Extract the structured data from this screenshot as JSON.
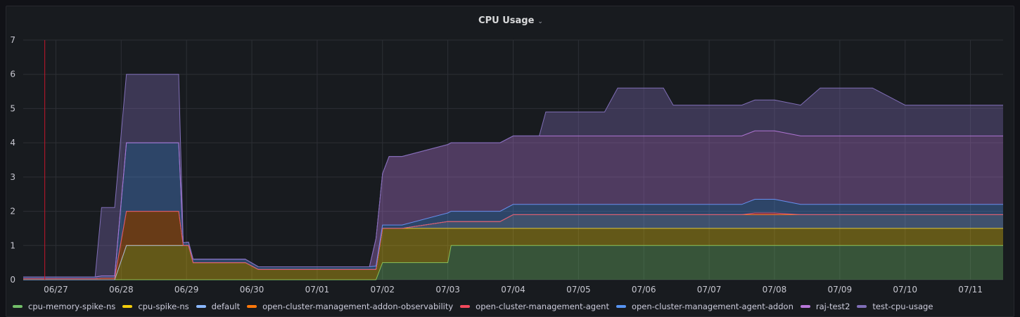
{
  "panel": {
    "title": "CPU Usage",
    "menu_icon": "chevron-down-icon"
  },
  "chart_data": {
    "type": "area",
    "stacked": true,
    "title": "CPU Usage",
    "xlabel": "",
    "ylabel": "",
    "ylim": [
      0,
      7
    ],
    "yticks": [
      0,
      1,
      2,
      3,
      4,
      5,
      6,
      7
    ],
    "x_tick_labels": [
      "06/27",
      "06/28",
      "06/29",
      "06/30",
      "07/01",
      "07/02",
      "07/03",
      "07/04",
      "07/05",
      "07/06",
      "07/07",
      "07/08",
      "07/09",
      "07/10",
      "07/11"
    ],
    "x_range_days": [
      -0.5,
      14.5
    ],
    "annotation_marker_day": -0.17,
    "grid": true,
    "legend_position": "bottom",
    "x": [
      -0.5,
      -0.17,
      0.6,
      0.7,
      0.9,
      1.08,
      1.88,
      1.95,
      2.03,
      2.1,
      2.15,
      2.9,
      3.1,
      4.0,
      4.8,
      4.9,
      5.0,
      5.1,
      5.3,
      6.0,
      6.05,
      6.1,
      6.8,
      7.0,
      7.4,
      7.5,
      8.0,
      8.4,
      8.6,
      9.0,
      9.3,
      9.45,
      9.6,
      10.0,
      10.5,
      10.7,
      11.0,
      11.4,
      11.7,
      12.0,
      12.5,
      13.0,
      13.5,
      14.0,
      14.5
    ],
    "series": [
      {
        "name": "cpu-memory-spike-ns",
        "color": "#73bf69",
        "values": [
          0,
          0,
          0,
          0,
          0,
          0,
          0,
          0,
          0,
          0,
          0,
          0,
          0,
          0,
          0,
          0,
          0.5,
          0.5,
          0.5,
          0.5,
          1,
          1,
          1,
          1,
          1,
          1,
          1,
          1,
          1,
          1,
          1,
          1,
          1,
          1,
          1,
          1,
          1,
          1,
          1,
          1,
          1,
          1,
          1,
          1,
          1
        ]
      },
      {
        "name": "cpu-spike-ns",
        "color": "#f2cc0c",
        "values": [
          0,
          0,
          0,
          0,
          0,
          1,
          1,
          1,
          1,
          0.5,
          0.5,
          0.5,
          0.3,
          0.3,
          0.3,
          0.3,
          1,
          1,
          1,
          1,
          0.5,
          0.5,
          0.5,
          0.5,
          0.5,
          0.5,
          0.5,
          0.5,
          0.5,
          0.5,
          0.5,
          0.5,
          0.5,
          0.5,
          0.5,
          0.5,
          0.5,
          0.5,
          0.5,
          0.5,
          0.5,
          0.5,
          0.5,
          0.5,
          0.5
        ]
      },
      {
        "name": "default",
        "color": "#8ab8ff",
        "values": [
          0,
          0,
          0,
          0,
          0,
          0,
          0,
          0,
          0,
          0,
          0,
          0,
          0,
          0,
          0,
          0,
          0,
          0,
          0,
          0.2,
          0.2,
          0.2,
          0.2,
          0.4,
          0.4,
          0.4,
          0.4,
          0.4,
          0.4,
          0.4,
          0.4,
          0.4,
          0.4,
          0.4,
          0.4,
          0.4,
          0.4,
          0.4,
          0.4,
          0.4,
          0.4,
          0.4,
          0.4,
          0.4,
          0.4
        ]
      },
      {
        "name": "open-cluster-management-addon-observability",
        "color": "#ff780a",
        "values": [
          0.03,
          0.03,
          0.03,
          0.05,
          0.05,
          1,
          1,
          0,
          0,
          0,
          0,
          0,
          0,
          0,
          0,
          0,
          0,
          0,
          0,
          0,
          0,
          0,
          0,
          0,
          0,
          0,
          0,
          0,
          0,
          0,
          0,
          0,
          0,
          0,
          0,
          0,
          0,
          0,
          0,
          0,
          0,
          0,
          0,
          0,
          0
        ]
      },
      {
        "name": "open-cluster-management-agent",
        "color": "#f2495c",
        "values": [
          0,
          0,
          0,
          0,
          0,
          0,
          0,
          0,
          0,
          0,
          0,
          0,
          0,
          0,
          0,
          0,
          0,
          0,
          0,
          0,
          0,
          0,
          0,
          0,
          0,
          0,
          0,
          0,
          0,
          0,
          0,
          0,
          0,
          0,
          0,
          0.05,
          0.05,
          0,
          0,
          0,
          0,
          0,
          0,
          0,
          0
        ]
      },
      {
        "name": "open-cluster-management-agent-addon",
        "color": "#5794f2",
        "values": [
          0.05,
          0.05,
          0.05,
          0.06,
          0.06,
          2,
          2,
          0.08,
          0.1,
          0.1,
          0.1,
          0.1,
          0.08,
          0.08,
          0.08,
          0.1,
          0.1,
          0.1,
          0.1,
          0.25,
          0.3,
          0.3,
          0.3,
          0.3,
          0.3,
          0.3,
          0.3,
          0.3,
          0.3,
          0.3,
          0.3,
          0.3,
          0.3,
          0.3,
          0.3,
          0.4,
          0.4,
          0.3,
          0.3,
          0.3,
          0.3,
          0.3,
          0.3,
          0.3,
          0.3
        ]
      },
      {
        "name": "raj-test2",
        "color": "#b877d9",
        "values": [
          0,
          0,
          0,
          0,
          0,
          0,
          0,
          0,
          0,
          0,
          0,
          0,
          0,
          0,
          0,
          0.8,
          1.5,
          2.0,
          2.0,
          2.0,
          2.0,
          2.0,
          2.0,
          2.0,
          2.0,
          2.0,
          2.0,
          2.0,
          2.0,
          2.0,
          2.0,
          2.0,
          2.0,
          2.0,
          2.0,
          2.0,
          2.0,
          2.0,
          2.0,
          2.0,
          2.0,
          2.0,
          2.0,
          2.0,
          2.0
        ]
      },
      {
        "name": "test-cpu-usage",
        "color": "#806eb7",
        "values": [
          0,
          0,
          0,
          2.0,
          2.0,
          2.0,
          2.0,
          0,
          0,
          0,
          0,
          0,
          0,
          0,
          0,
          0,
          0,
          0,
          0,
          0,
          0,
          0,
          0,
          0,
          0,
          0.7,
          0.7,
          0.7,
          1.4,
          1.4,
          1.4,
          0.9,
          0.9,
          0.9,
          0.9,
          0.9,
          0.9,
          0.9,
          1.4,
          1.4,
          1.4,
          0.9,
          0.9,
          0.9,
          0.9
        ]
      }
    ]
  }
}
